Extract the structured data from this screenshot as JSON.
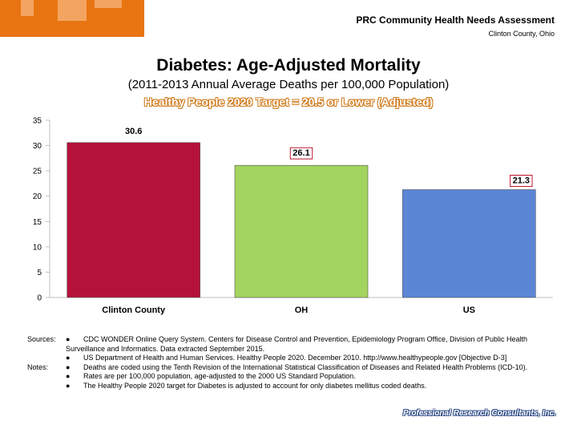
{
  "header": {
    "title": "PRC Community Health Needs Assessment",
    "subtitle": "Clinton County, Ohio"
  },
  "chart_data": {
    "type": "bar",
    "title": "Diabetes: Age-Adjusted Mortality",
    "subtitle": "(2011-2013 Annual Average Deaths per 100,000 Population)",
    "target": "Healthy People 2020 Target = 20.5 or Lower (Adjusted)",
    "categories": [
      "Clinton County",
      "OH",
      "US"
    ],
    "values": [
      30.6,
      26.1,
      21.3
    ],
    "value_labels": [
      "30.6",
      "26.1",
      "21.3"
    ],
    "colors": [
      "#b5123a",
      "#a3d45f",
      "#5b86d6"
    ],
    "ylim": [
      0,
      35
    ],
    "yticks": [
      "0",
      "5",
      "10",
      "15",
      "20",
      "25",
      "30",
      "35"
    ],
    "grid": false
  },
  "notes": {
    "sources_label": "Sources:",
    "sources": [
      "CDC WONDER Online Query System. Centers for Disease Control and Prevention, Epidemiology Program Office, Division of Public Health Surveillance and Informatics. Data extracted September 2015.",
      "US Department of Health and Human Services. Healthy People 2020. December 2010. http://www.healthypeople.gov [Objective D-3]"
    ],
    "notes_label": "Notes:",
    "notes": [
      "Deaths are coded using the Tenth Revision of the International Statistical Classification of Diseases and Related Health Problems (ICD-10).",
      "Rates are per 100,000 population, age-adjusted to the 2000 US Standard Population.",
      "The Healthy People 2020 target for Diabetes is adjusted to account for only diabetes mellitus coded deaths."
    ],
    "bullet": "●"
  },
  "footer": {
    "brand": "Professional Research Consultants, Inc."
  }
}
